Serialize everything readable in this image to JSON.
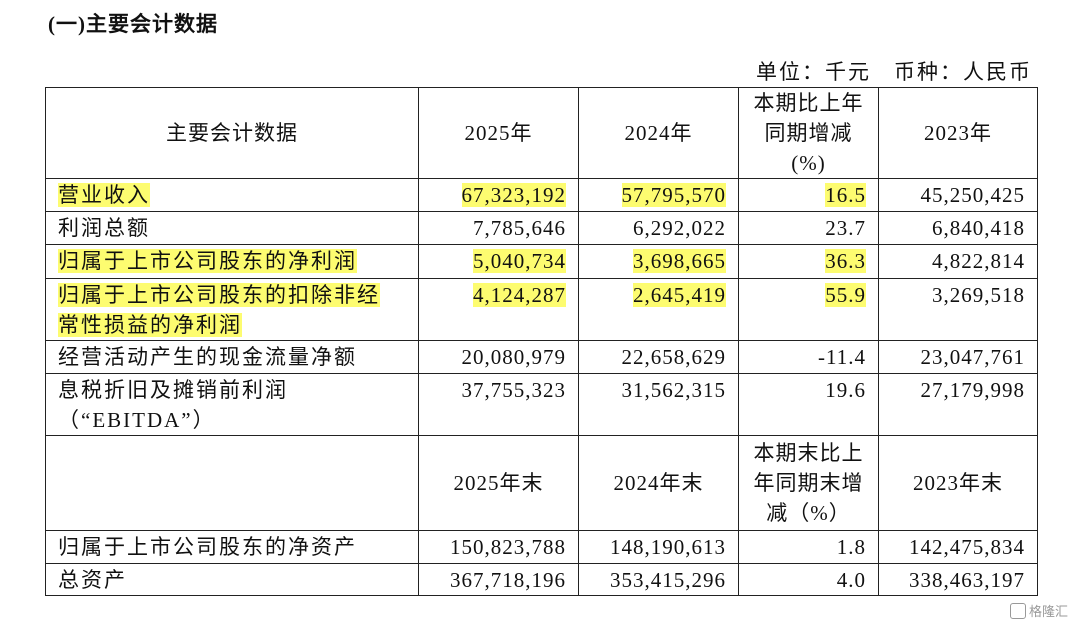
{
  "title": "(一)主要会计数据",
  "unit": "单位：千元　币种：人民币",
  "table": {
    "header": [
      "主要会计数据",
      "2025年",
      "2024年",
      [
        "本期比上年",
        "同期增减",
        "(%)"
      ],
      "2023年"
    ],
    "rows": [
      [
        "营业收入",
        "67,323,192",
        "57,795,570",
        "16.5",
        "45,250,425"
      ],
      [
        "利润总额",
        "7,785,646",
        "6,292,022",
        "23.7",
        "6,840,418"
      ],
      [
        "归属于上市公司股东的净利润",
        "5,040,734",
        "3,698,665",
        "36.3",
        "4,822,814"
      ],
      [
        [
          "归属于上市公司股东的扣除非经",
          "常性损益的净利润"
        ],
        "4,124,287",
        "2,645,419",
        "55.9",
        "3,269,518"
      ],
      [
        "经营活动产生的现金流量净额",
        "20,080,979",
        "22,658,629",
        "-11.4",
        "23,047,761"
      ],
      [
        [
          "息税折旧及摊销前利润",
          "（“EBITDA”）"
        ],
        "37,755,323",
        "31,562,315",
        "19.6",
        "27,179,998"
      ]
    ],
    "header2": [
      "2025年末",
      "2024年末",
      [
        "本期末比上",
        "年同期末增",
        "减（%）"
      ],
      "2023年末"
    ],
    "rows2": [
      [
        "归属于上市公司股东的净资产",
        "150,823,788",
        "148,190,613",
        "1.8",
        "142,475,834"
      ],
      [
        "总资产",
        "367,718,196",
        "353,415,296",
        "4.0",
        "338,463,197"
      ]
    ]
  },
  "watermark": "格隆汇"
}
